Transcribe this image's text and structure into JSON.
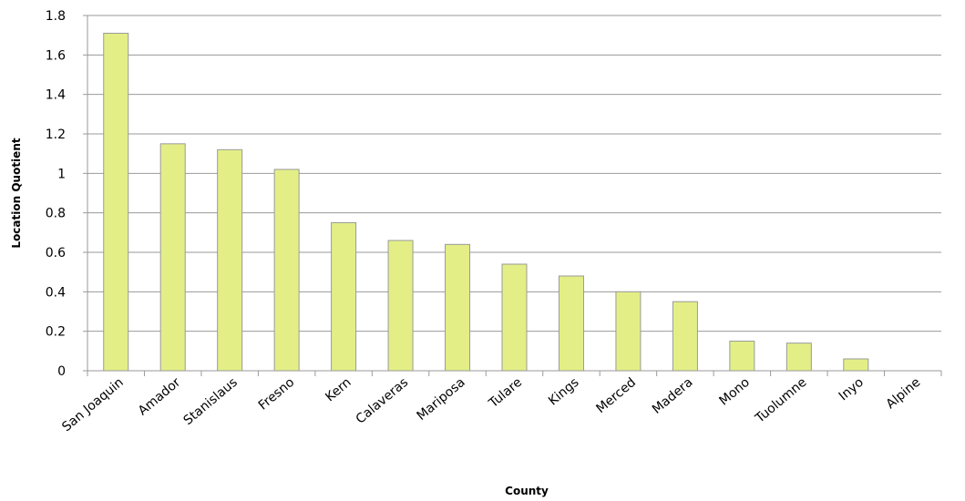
{
  "chart_data": {
    "type": "bar",
    "title": "",
    "xlabel": "County",
    "ylabel": "Location Quotient",
    "categories": [
      "San Joaquin",
      "Amador",
      "Stanislaus",
      "Fresno",
      "Kern",
      "Calaveras",
      "Mariposa",
      "Tulare",
      "Kings",
      "Merced",
      "Madera",
      "Mono",
      "Tuolumne",
      "Inyo",
      "Alpine"
    ],
    "values": [
      1.71,
      1.15,
      1.12,
      1.02,
      0.75,
      0.66,
      0.64,
      0.54,
      0.48,
      0.4,
      0.35,
      0.15,
      0.14,
      0.06,
      0
    ],
    "ylim": [
      0,
      1.8
    ],
    "yticks": [
      "0",
      "0.2",
      "0.4",
      "0.6",
      "0.8",
      "1",
      "1.2",
      "1.4",
      "1.6",
      "1.8"
    ],
    "grid": true,
    "legend": "none",
    "colors": {
      "bar_fill": "#e3ef86",
      "bar_stroke": "#9a9a9a",
      "grid": "#9a9a9a",
      "axis": "#9a9a9a"
    }
  }
}
